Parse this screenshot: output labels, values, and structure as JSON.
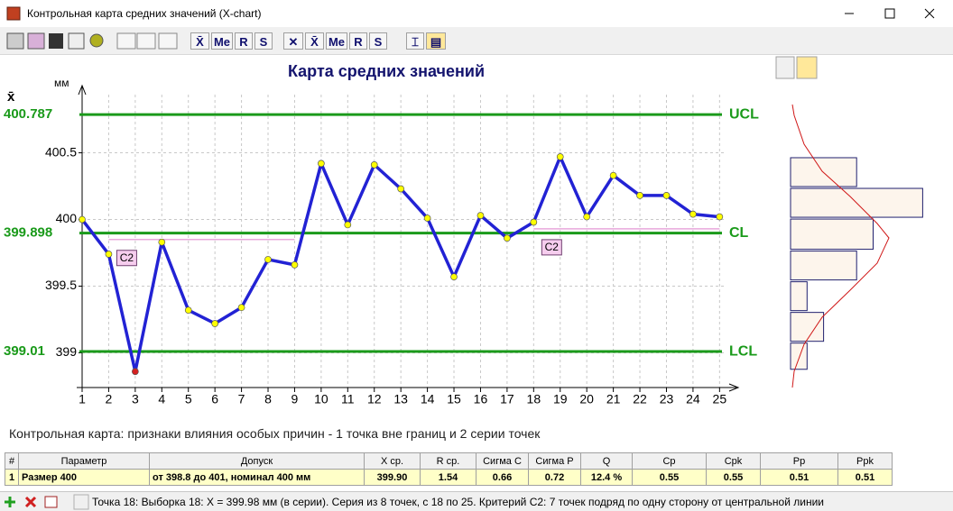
{
  "window": {
    "title": "Контрольная карта средних значений (X-chart)"
  },
  "toolbar": {
    "text_buttons": [
      "Me",
      "R",
      "S",
      "Me",
      "R",
      "S"
    ]
  },
  "chart_data": [
    {
      "type": "line",
      "title": "Карта средних значений",
      "y_symbol": "x̄",
      "y_unit": "мм",
      "x": [
        1,
        2,
        3,
        4,
        5,
        6,
        7,
        8,
        9,
        10,
        11,
        12,
        13,
        14,
        15,
        16,
        17,
        18,
        19,
        20,
        21,
        22,
        23,
        24,
        25
      ],
      "xlim": [
        1,
        25.6
      ],
      "xticks": [
        1,
        2,
        3,
        4,
        5,
        6,
        7,
        8,
        9,
        10,
        11,
        12,
        13,
        14,
        15,
        16,
        17,
        18,
        19,
        20,
        21,
        22,
        23,
        24,
        25
      ],
      "ylim": [
        398.74,
        400.97
      ],
      "yticks": [
        399,
        399.5,
        400,
        400.5
      ],
      "grid": true,
      "series": [
        {
          "color": "#2222d4",
          "marker_color": "#ffff00",
          "values": [
            400.0,
            399.74,
            398.86,
            399.83,
            399.32,
            399.22,
            399.34,
            399.7,
            399.66,
            400.42,
            399.96,
            400.41,
            400.23,
            400.01,
            399.57,
            400.03,
            399.86,
            399.98,
            400.47,
            400.02,
            400.33,
            400.18,
            400.18,
            400.04,
            400.02
          ]
        }
      ],
      "out_of_limits_color": "#d42020",
      "control_lines": [
        {
          "name": "UCL",
          "value": 400.787,
          "color": "#1a9a1a"
        },
        {
          "name": "CL",
          "value": 399.898,
          "color": "#1a9a1a"
        },
        {
          "name": "LCL",
          "value": 399.01,
          "color": "#1a9a1a"
        }
      ],
      "runs": [
        {
          "label": "C2",
          "from": 2,
          "to": 9,
          "level": 399.85,
          "color": "#e8a8dc"
        },
        {
          "label": "C2",
          "from": 18,
          "to": 25,
          "level": 399.93,
          "color": "#e8a8dc"
        }
      ]
    },
    {
      "type": "histogram",
      "orientation": "horizontal",
      "ylim": [
        398.74,
        400.97
      ],
      "bins": [
        398.87,
        399.08,
        399.31,
        399.54,
        399.77,
        400.01,
        400.24,
        400.47
      ],
      "counts": [
        1,
        2,
        1,
        4,
        5,
        8,
        4
      ],
      "color": "#fdf5ec",
      "edge_color": "#20206e"
    }
  ],
  "message": "Контрольная карта: признаки влияния особых причин - 1 точка вне границ и 2 серии точек",
  "table": {
    "header": [
      "#",
      "Параметр",
      "Допуск",
      "X ср.",
      "R ср.",
      "Сигма С",
      "Сигма Р",
      "Q",
      "Cp",
      "Cpk",
      "Pp",
      "Ppk"
    ],
    "rows": [
      [
        "1",
        "Размер 400",
        "от 398.8 до 401, номинал 400 мм",
        "399.90",
        "1.54",
        "0.66",
        "0.72",
        "12.4 %",
        "0.55",
        "0.55",
        "0.51",
        "0.51"
      ]
    ]
  },
  "status": "Точка 18:  Выборка 18:  X = 399.98 мм (в серии). Серия из 8 точек, с 18 по 25. Критерий C2: 7 точек подряд по одну сторону от центральной линии"
}
